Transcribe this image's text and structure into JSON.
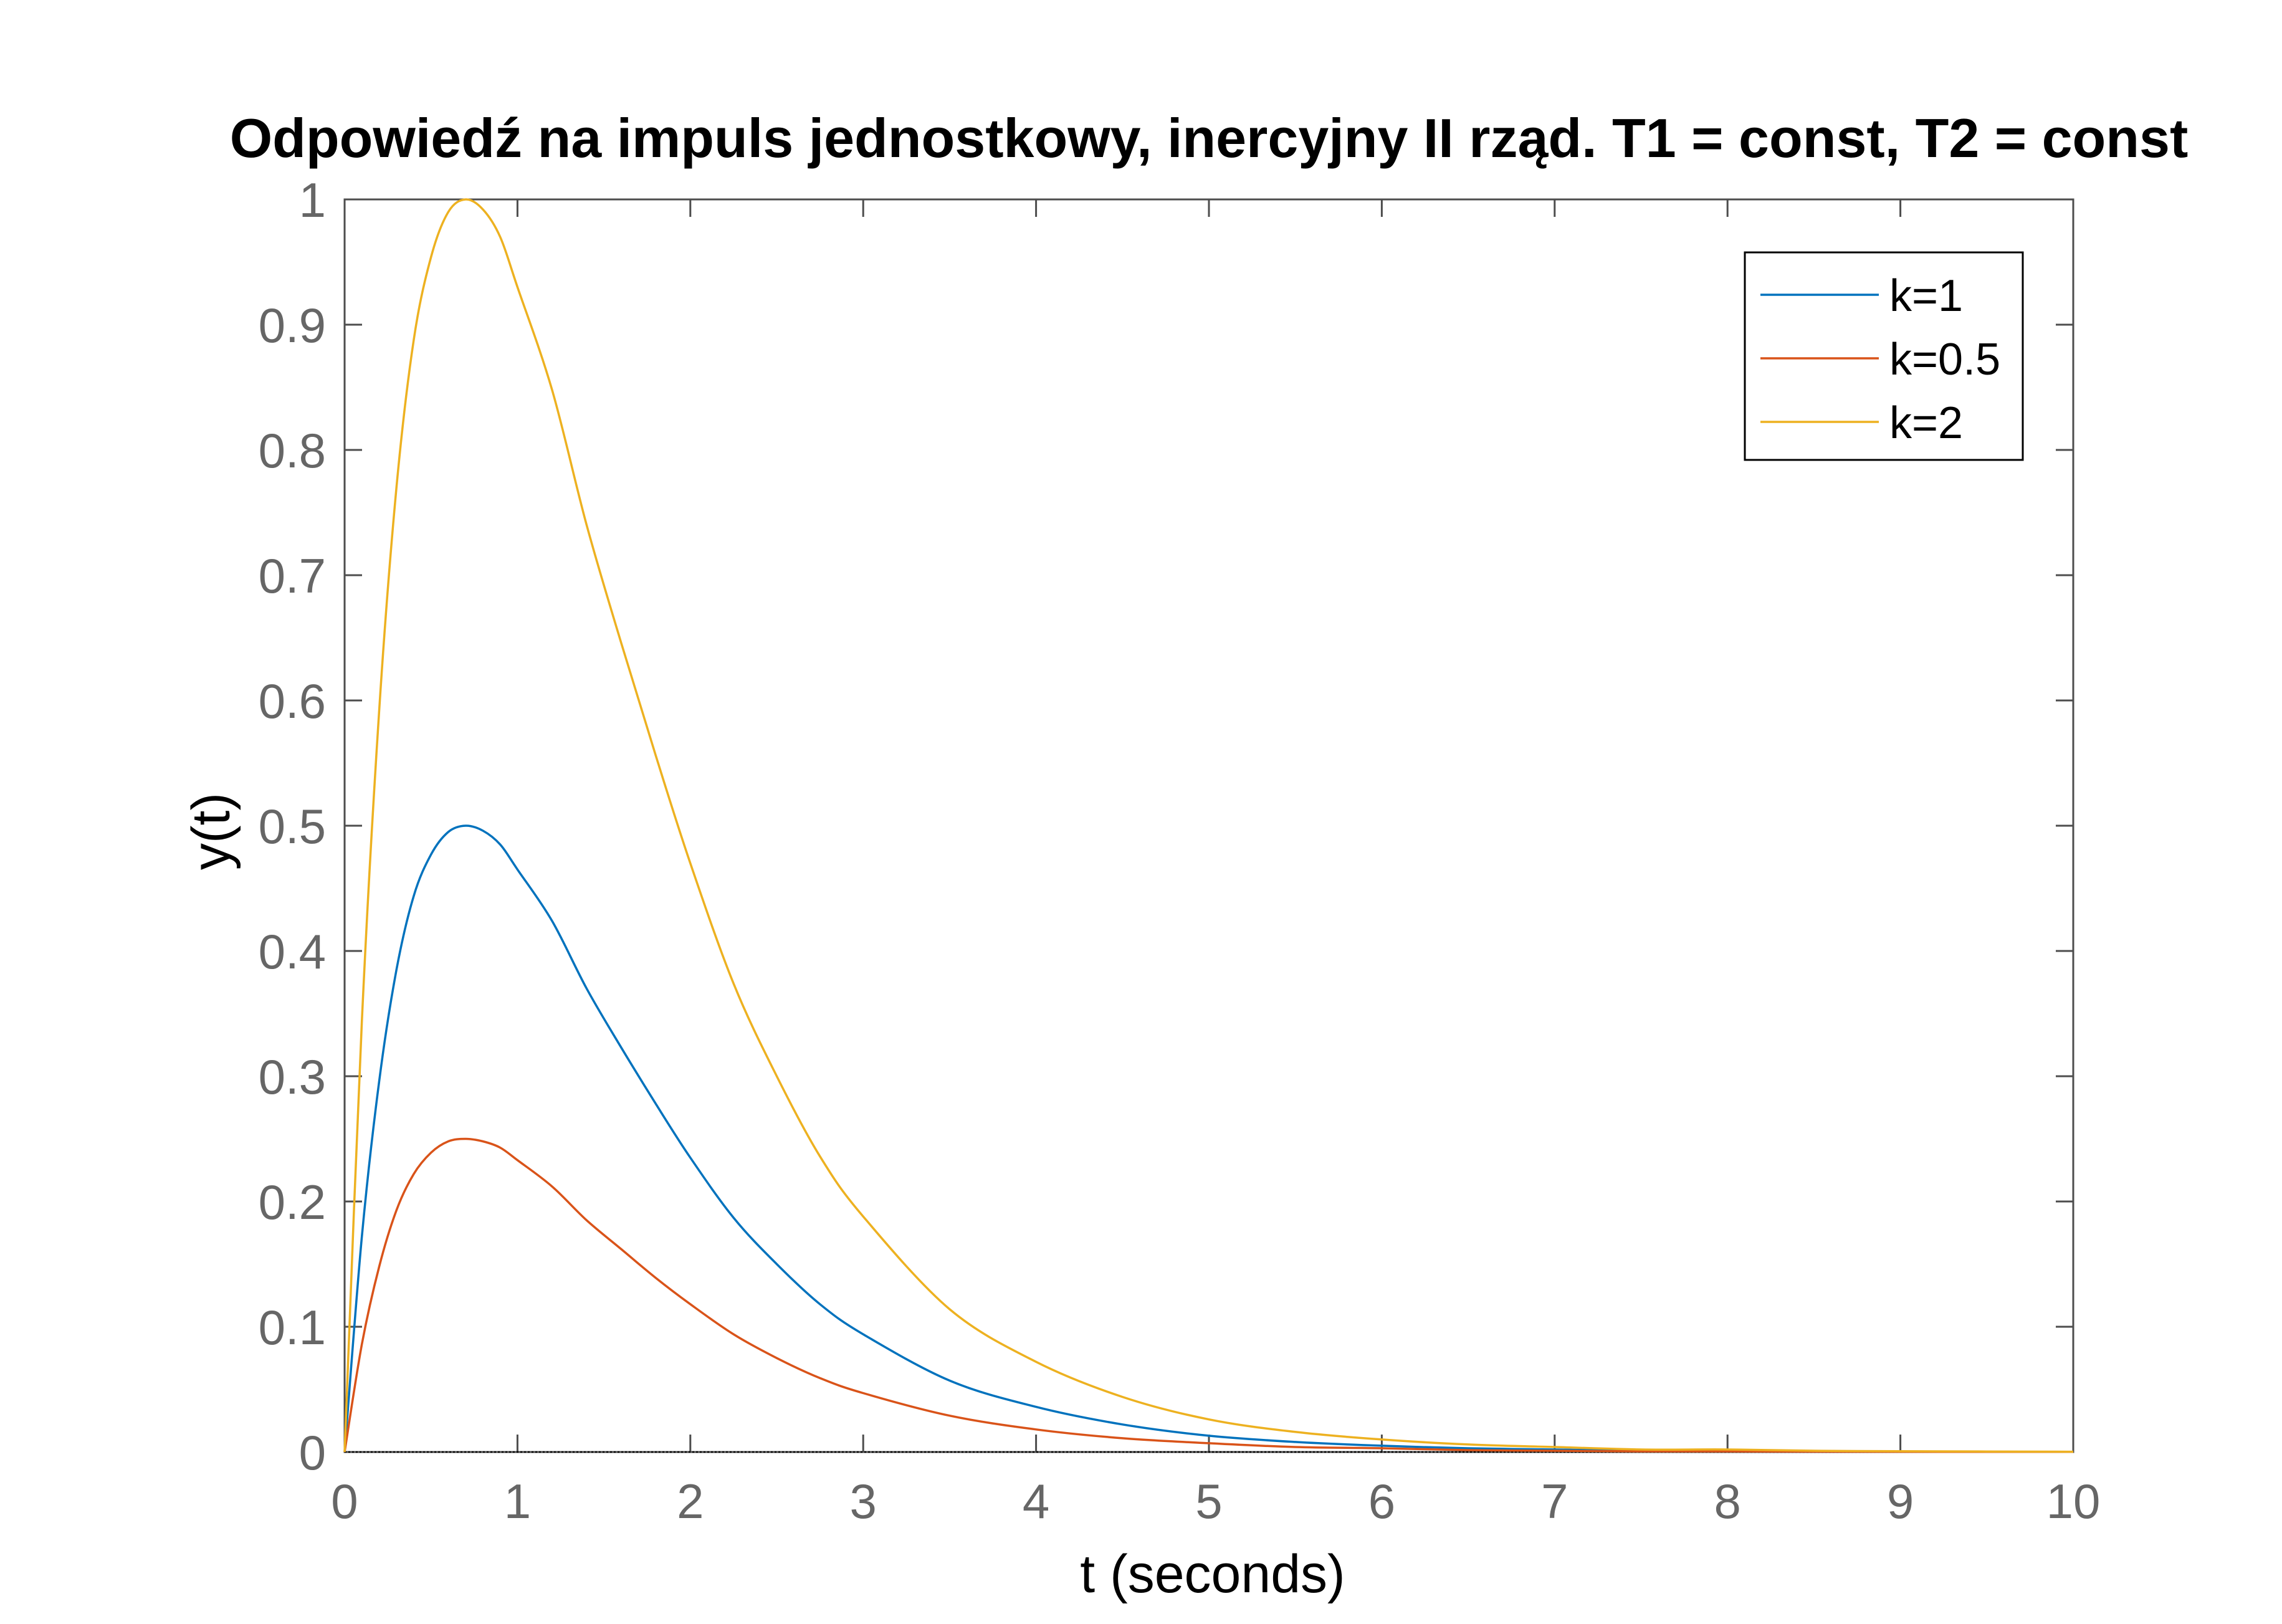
{
  "chart_data": {
    "type": "line",
    "title": "Odpowiedź na impuls jednostkowy, inercyjny II rząd. T1 = const, T2 = const",
    "xlabel": "t (seconds)",
    "ylabel": "y(t)",
    "xlim": [
      0,
      10
    ],
    "ylim": [
      0,
      1
    ],
    "xticks": [
      "0",
      "1",
      "2",
      "3",
      "4",
      "5",
      "6",
      "7",
      "8",
      "9",
      "10"
    ],
    "yticks": [
      "0",
      "0.1",
      "0.2",
      "0.3",
      "0.4",
      "0.5",
      "0.6",
      "0.7",
      "0.8",
      "0.9",
      "1"
    ],
    "grid": false,
    "legend_position": "top-right",
    "x": [
      0,
      0.1,
      0.2,
      0.3,
      0.4,
      0.5,
      0.6,
      0.7,
      0.8,
      0.9,
      1.0,
      1.2,
      1.4,
      1.6,
      1.8,
      2.0,
      2.25,
      2.5,
      2.75,
      3.0,
      3.5,
      4.0,
      4.5,
      5.0,
      5.5,
      6.0,
      6.5,
      7.0,
      7.5,
      8.0,
      8.5,
      9.0,
      9.5,
      10.0
    ],
    "series": [
      {
        "name": "k=1",
        "color": "#0072BD",
        "values": [
          0,
          0.172,
          0.296,
          0.385,
          0.444,
          0.477,
          0.495,
          0.5,
          0.496,
          0.485,
          0.465,
          0.424,
          0.37,
          0.323,
          0.278,
          0.235,
          0.187,
          0.15,
          0.118,
          0.094,
          0.057,
          0.036,
          0.022,
          0.013,
          0.008,
          0.005,
          0.003,
          0.002,
          0.001,
          0.001,
          0.0005,
          0.0003,
          0.0002,
          0.0001
        ]
      },
      {
        "name": "k=0.5",
        "color": "#D95319",
        "values": [
          0,
          0.086,
          0.148,
          0.193,
          0.222,
          0.239,
          0.248,
          0.25,
          0.248,
          0.243,
          0.233,
          0.212,
          0.185,
          0.162,
          0.139,
          0.118,
          0.094,
          0.075,
          0.059,
          0.047,
          0.029,
          0.018,
          0.011,
          0.007,
          0.004,
          0.003,
          0.0015,
          0.001,
          0.0005,
          0.0005,
          0.0003,
          0.0002,
          0.0001,
          0.0001
        ]
      },
      {
        "name": "k=2",
        "color": "#EDB120",
        "values": [
          0,
          0.344,
          0.592,
          0.77,
          0.888,
          0.954,
          0.99,
          1.0,
          0.992,
          0.97,
          0.93,
          0.848,
          0.74,
          0.646,
          0.556,
          0.47,
          0.374,
          0.3,
          0.236,
          0.188,
          0.114,
          0.072,
          0.044,
          0.026,
          0.016,
          0.01,
          0.006,
          0.004,
          0.002,
          0.002,
          0.001,
          0.0006,
          0.0004,
          0.0002
        ]
      }
    ]
  }
}
